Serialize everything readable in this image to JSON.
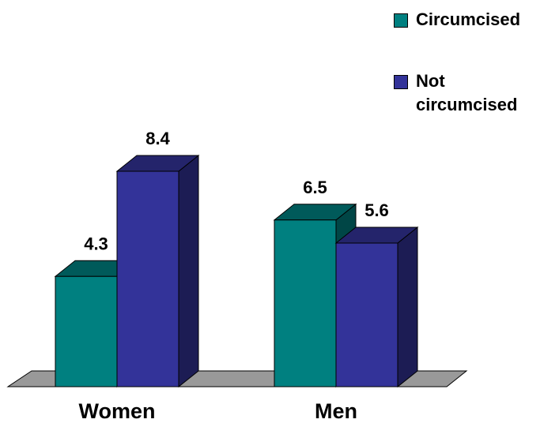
{
  "chart_data": {
    "type": "bar3d",
    "categories": [
      "Women",
      "Men"
    ],
    "series": [
      {
        "name": "Circumcised",
        "color": "#008080",
        "values": [
          4.3,
          6.5
        ]
      },
      {
        "name": "Not circumcised",
        "color": "#333399",
        "values": [
          8.4,
          5.6
        ]
      }
    ]
  }
}
